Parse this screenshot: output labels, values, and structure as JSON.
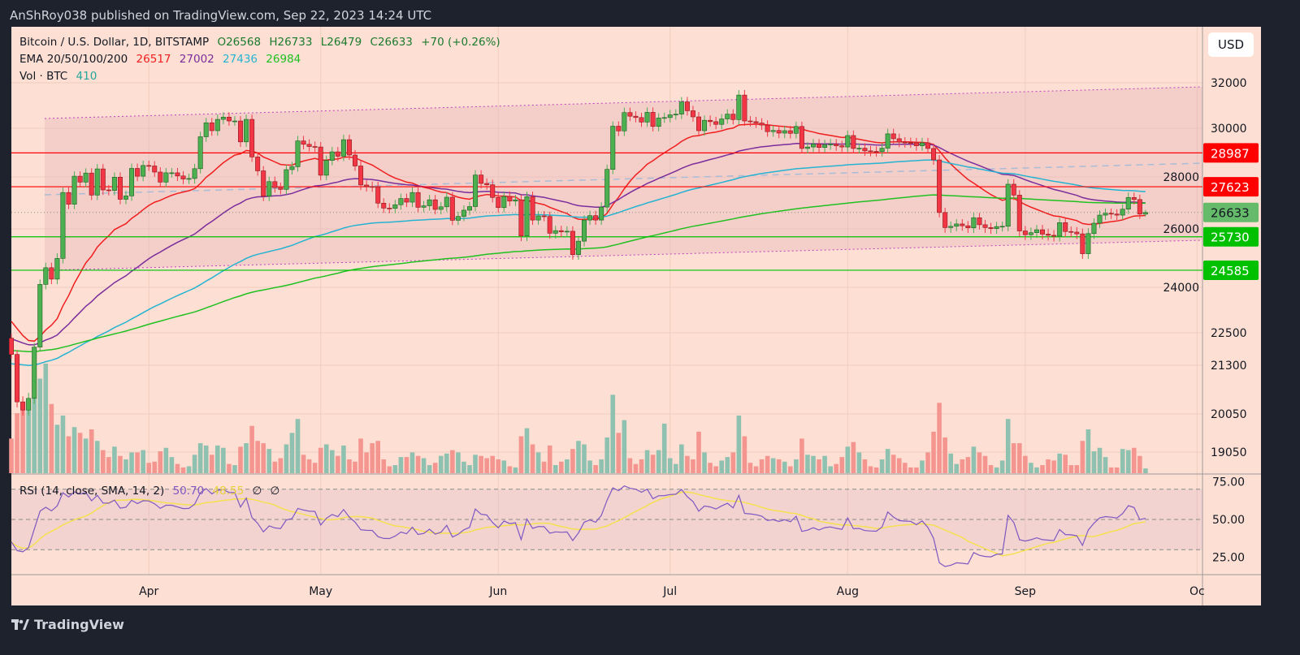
{
  "header": {
    "published": "AnShRoy038 published on TradingView.com, Sep 22, 2023 14:24 UTC"
  },
  "legend": {
    "symbol": "Bitcoin / U.S. Dollar, 1D, BITSTAMP",
    "open": "O26568",
    "high": "H26733",
    "low": "L26479",
    "close": "C26633",
    "change": "+70 (+0.26%)",
    "ema_label": "EMA 20/50/100/200",
    "ema20": "26517",
    "ema50": "27002",
    "ema100": "27436",
    "ema200": "26984",
    "vol_label": "Vol · BTC",
    "vol_value": "410",
    "rsi_label": "RSI (14, close, SMA, 14, 2)",
    "rsi_value": "50.70",
    "rsi_sma_value": "48.55",
    "rsi_extra1": "∅",
    "rsi_extra2": "∅"
  },
  "currency_button": "USD",
  "footer": {
    "brand": "TradingView"
  },
  "colors": {
    "up": "#4caf50",
    "down": "#f23645",
    "vol_up": "#8fc1b0",
    "vol_down": "#f4968f",
    "ema20": "#f01e1e",
    "ema50": "#7b2d9b",
    "ema100": "#26b3d1",
    "ema200": "#21c021",
    "rsi": "#7e57c2",
    "rsi_sma": "#f5e050",
    "background": "#fde0d3"
  },
  "chart_data": {
    "type": "candlestick",
    "start_date": "2023-03-08",
    "end_date": "2023-09-22",
    "interval": "1D",
    "last_candle": {
      "open": 26568,
      "high": 26733,
      "low": 26479,
      "close": 26633
    },
    "closes": [
      21700,
      20360,
      20150,
      20450,
      21970,
      24100,
      24670,
      24280,
      24990,
      27400,
      26950,
      28030,
      27800,
      28160,
      27300,
      28330,
      27500,
      27480,
      27990,
      27140,
      27270,
      28350,
      28030,
      28470,
      28450,
      28200,
      27800,
      28170,
      28170,
      28040,
      27920,
      27940,
      28340,
      29650,
      30240,
      29900,
      30390,
      30490,
      30320,
      30320,
      29440,
      30390,
      28820,
      28250,
      27260,
      27820,
      27590,
      27520,
      28300,
      28420,
      29480,
      29340,
      29250,
      29230,
      28070,
      28680,
      29030,
      28850,
      29530,
      28900,
      28450,
      27690,
      27630,
      27620,
      26990,
      26800,
      26790,
      26930,
      27170,
      27030,
      27400,
      26830,
      26890,
      27120,
      26750,
      26850,
      27220,
      26330,
      26480,
      26720,
      26860,
      28080,
      27750,
      27700,
      27210,
      26820,
      27250,
      27070,
      27120,
      25760,
      27240,
      26340,
      26500,
      26480,
      25850,
      25940,
      25900,
      25920,
      25120,
      25580,
      26340,
      26510,
      26340,
      26840,
      28310,
      30090,
      29890,
      30690,
      30530,
      30470,
      30270,
      30700,
      30080,
      30450,
      30470,
      30590,
      30620,
      31160,
      30770,
      30500,
      29900,
      30350,
      30290,
      30170,
      30410,
      30620,
      30380,
      31460,
      30320,
      30290,
      30230,
      30140,
      29860,
      29910,
      29800,
      29900,
      29790,
      30080,
      29170,
      29230,
      29350,
      29210,
      29320,
      29350,
      29280,
      29230,
      29700,
      29170,
      29180,
      29070,
      29050,
      29040,
      29180,
      29770,
      29570,
      29430,
      29410,
      29400,
      29280,
      29400,
      29170,
      28700,
      26630,
      26050,
      26100,
      26190,
      26120,
      26040,
      26430,
      26160,
      26050,
      26010,
      26090,
      26100,
      27720,
      27300,
      25930,
      25800,
      25870,
      25970,
      25820,
      25780,
      25750,
      26240,
      25910,
      25890,
      25830,
      25150,
      25840,
      26220,
      26530,
      26600,
      26570,
      26530,
      26760,
      27210,
      27130,
      26570,
      26633
    ],
    "volumes": [
      3000,
      5200,
      5500,
      5500,
      6500,
      8200,
      9500,
      6000,
      4200,
      5000,
      3200,
      4000,
      3500,
      3000,
      3800,
      2800,
      2000,
      1400,
      2300,
      1500,
      1200,
      1800,
      1800,
      2000,
      900,
      1000,
      1900,
      2200,
      1400,
      800,
      500,
      600,
      1600,
      2600,
      2400,
      1600,
      2400,
      2200,
      800,
      700,
      2300,
      2600,
      4100,
      2800,
      2600,
      2100,
      1000,
      1300,
      2500,
      3500,
      4700,
      1600,
      1200,
      900,
      2200,
      2500,
      2000,
      1500,
      2400,
      1200,
      1000,
      3000,
      1800,
      2600,
      2800,
      1200,
      600,
      700,
      1400,
      1400,
      1800,
      1500,
      1300,
      700,
      900,
      1500,
      1700,
      2000,
      1800,
      1000,
      700,
      1600,
      1500,
      1300,
      1500,
      1200,
      1100,
      600,
      500,
      3200,
      3900,
      2500,
      1800,
      1000,
      2400,
      700,
      1000,
      1200,
      2100,
      2800,
      2500,
      1100,
      700,
      1200,
      3100,
      6800,
      3500,
      4600,
      1300,
      800,
      1200,
      2000,
      1600,
      2000,
      4300,
      1300,
      800,
      2500,
      1500,
      1200,
      3600,
      1800,
      900,
      600,
      1100,
      1400,
      1800,
      5000,
      3200,
      900,
      600,
      1200,
      1500,
      1300,
      1200,
      1000,
      600,
      1200,
      3000,
      1600,
      1500,
      1200,
      1500,
      600,
      800,
      1400,
      2300,
      2700,
      1800,
      1200,
      600,
      500,
      1200,
      2100,
      1600,
      1300,
      900,
      500,
      500,
      1100,
      1800,
      3600,
      6100,
      3100,
      1700,
      800,
      1200,
      1400,
      2300,
      1800,
      1500,
      700,
      500,
      1100,
      4700,
      2600,
      2600,
      1500,
      900,
      500,
      700,
      1200,
      1100,
      1700,
      1600,
      700,
      700,
      2800,
      3800,
      1900,
      2200,
      1400,
      500,
      500,
      2100,
      2000,
      2200,
      1500,
      410
    ],
    "price_axis_ticks": [
      "32000",
      "30000",
      "28000",
      "26000",
      "24000",
      "22500",
      "21300",
      "20050",
      "19050"
    ],
    "price_scale": "non-linear",
    "horizontal_levels": [
      {
        "value": 28987,
        "color": "#ff0000"
      },
      {
        "value": 27623,
        "color": "#ff0000"
      },
      {
        "value": 25730,
        "color": "#00c000"
      },
      {
        "value": 24585,
        "color": "#00c000"
      }
    ],
    "current_price": 26633,
    "time_axis_labels": [
      "Apr",
      "May",
      "Jun",
      "Jul",
      "Aug",
      "Sep",
      "Oc"
    ],
    "rsi_axis_ticks": [
      "75.00",
      "50.00",
      "25.00"
    ],
    "rsi_levels": [
      70,
      50,
      30
    ],
    "indicators": [
      "EMA 20",
      "EMA 50",
      "EMA 100",
      "EMA 200",
      "Volume",
      "RSI 14"
    ],
    "grid": true
  }
}
